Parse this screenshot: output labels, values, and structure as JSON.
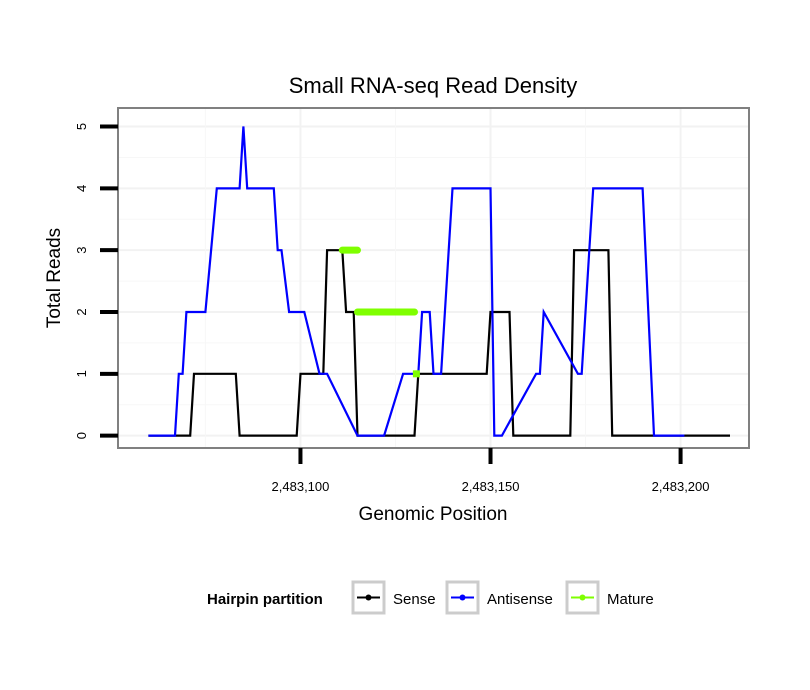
{
  "chart_data": {
    "type": "line",
    "title": "Small RNA-seq Read Density",
    "xlabel": "Genomic Position",
    "ylabel": "Total Reads",
    "xlim": [
      2483052,
      2483218
    ],
    "ylim": [
      -0.2,
      5.3
    ],
    "x_ticks": [
      2483100,
      2483150,
      2483200
    ],
    "x_tick_labels": [
      "2,483,100",
      "2,483,150",
      "2,483,200"
    ],
    "y_ticks": [
      0,
      1,
      2,
      3,
      4,
      5
    ],
    "y_tick_labels": [
      "0",
      "1",
      "2",
      "3",
      "4",
      "5"
    ],
    "grid": true,
    "legend": {
      "title": "Hairpin partition",
      "position": "bottom",
      "entries": [
        {
          "label": "Sense",
          "color": "#000000"
        },
        {
          "label": "Antisense",
          "color": "#0000ff"
        },
        {
          "label": "Mature",
          "color": "#7fff00"
        }
      ]
    },
    "series": [
      {
        "name": "Sense",
        "color": "#000000",
        "x": [
          2483060,
          2483071,
          2483072,
          2483083,
          2483084,
          2483099,
          2483100,
          2483106,
          2483107,
          2483111,
          2483112,
          2483114,
          2483115,
          2483130,
          2483131,
          2483149,
          2483150,
          2483155,
          2483156,
          2483171,
          2483172,
          2483181,
          2483182,
          2483200,
          2483201,
          2483213
        ],
        "y": [
          0,
          0,
          1,
          1,
          0,
          0,
          1,
          1,
          3,
          3,
          2,
          2,
          0,
          0,
          1,
          1,
          2,
          2,
          0,
          0,
          3,
          3,
          0,
          0,
          0,
          0
        ]
      },
      {
        "name": "Antisense",
        "color": "#0000ff",
        "x": [
          2483060,
          2483067,
          2483068,
          2483069,
          2483070,
          2483075,
          2483078,
          2483084,
          2483085,
          2483086,
          2483090,
          2483093,
          2483094,
          2483095,
          2483097,
          2483100,
          2483101,
          2483105,
          2483107,
          2483115,
          2483120,
          2483122,
          2483127,
          2483131,
          2483132,
          2483134,
          2483135,
          2483137,
          2483140,
          2483150,
          2483151,
          2483153,
          2483162,
          2483163,
          2483164,
          2483173,
          2483174,
          2483176,
          2483177,
          2483190,
          2483193,
          2483201
        ],
        "y": [
          0,
          0,
          1,
          1,
          2,
          2,
          4,
          4,
          5,
          4,
          4,
          4,
          3,
          3,
          2,
          2,
          2,
          1,
          1,
          0,
          0,
          0,
          1,
          1,
          2,
          2,
          1,
          1,
          4,
          4,
          0,
          0,
          1,
          1,
          2,
          1,
          1,
          3,
          4,
          4,
          0,
          0
        ]
      },
      {
        "name": "Mature",
        "color": "#7fff00",
        "segments": [
          {
            "x": [
              2483111,
              2483115
            ],
            "y": [
              3,
              3
            ]
          },
          {
            "x": [
              2483115,
              2483130
            ],
            "y": [
              2,
              2
            ]
          },
          {
            "x": [
              2483130.5,
              2483130.5
            ],
            "y": [
              1,
              1
            ]
          }
        ]
      }
    ]
  }
}
